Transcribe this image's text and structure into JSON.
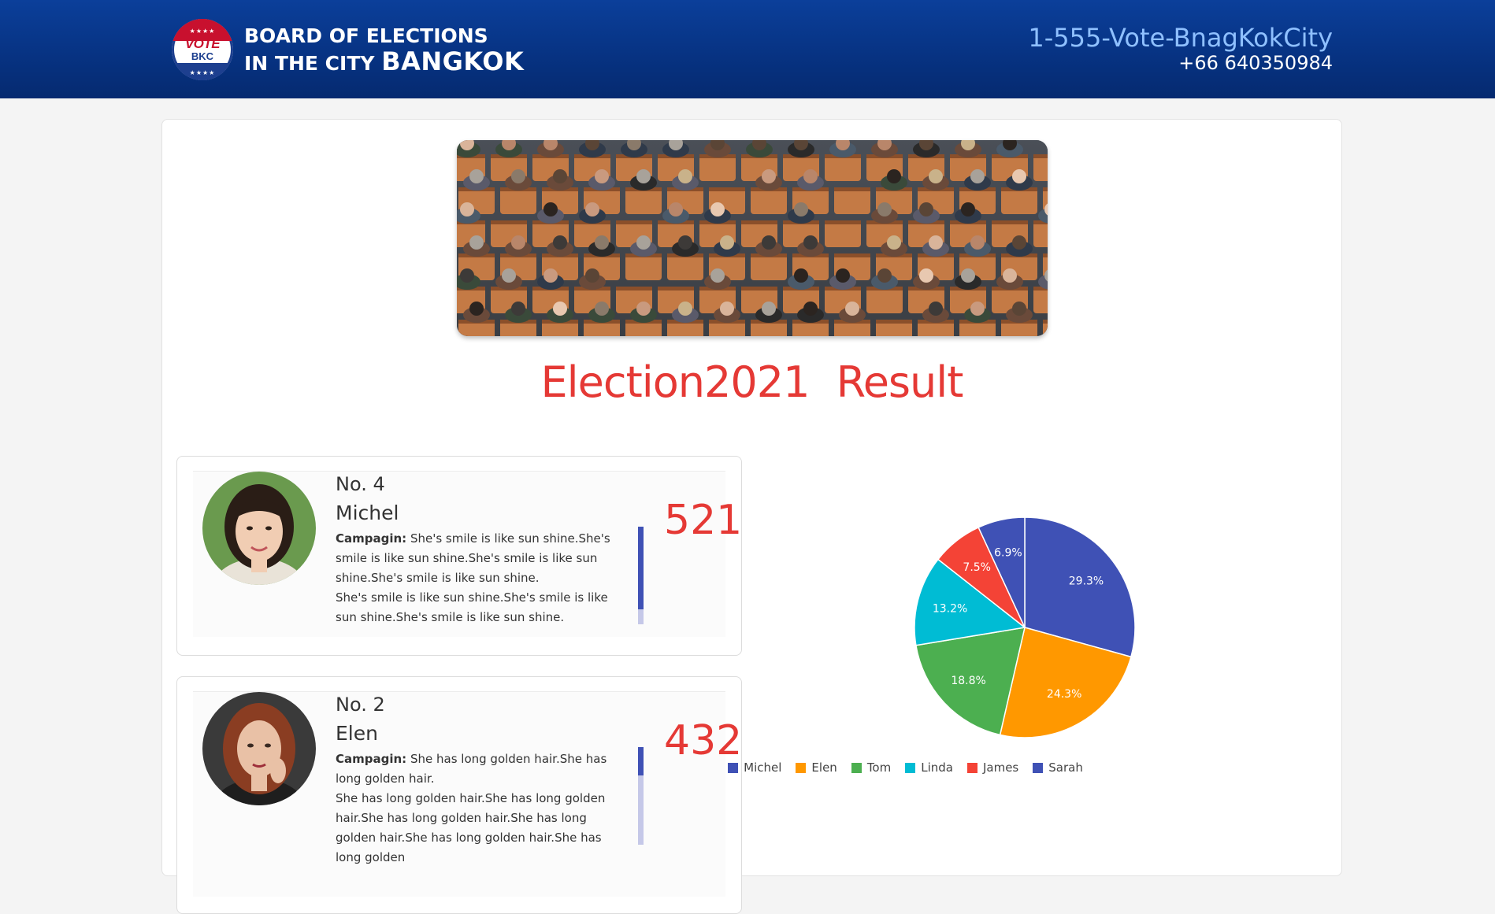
{
  "header": {
    "logo": {
      "vote": "VOTE",
      "bkc": "BKC",
      "stars": "★★★★"
    },
    "org_line1": "BOARD OF ELECTIONS",
    "org_line2_prefix": "IN THE CITY",
    "org_line2_city": "BANGKOK",
    "hotline": "1-555-Vote-BnagKokCity",
    "phone": "+66 640350984"
  },
  "main": {
    "result_title": "Election2021   Result"
  },
  "candidates": [
    {
      "number": "No. 4",
      "name": "Michel",
      "campaign_label": "Campagin:",
      "campaign_text": "She's smile is like sun shine.She's smile is like sun shine.She's smile is like sun shine.She's smile is like sun shine.",
      "campaign_text2": "She's smile is like sun shine.She's smile is like sun shine.She's smile is like sun shine.",
      "votes": "521",
      "bar_fill_fraction": 0.85
    },
    {
      "number": "No. 2",
      "name": "Elen",
      "campaign_label": "Campagin:",
      "campaign_text": "She has long golden hair.She has long golden hair.",
      "campaign_text2": "She has long golden hair.She has long golden hair.She has long golden hair.She has long golden hair.She has long golden hair.She has long golden",
      "votes": "432",
      "bar_fill_fraction": 0.29
    }
  ],
  "chart_data": {
    "type": "pie",
    "categories": [
      "Michel",
      "Elen",
      "Tom",
      "Linda",
      "James",
      "Sarah"
    ],
    "values": [
      29.3,
      24.3,
      18.8,
      13.2,
      7.5,
      6.9
    ],
    "labels": [
      "29.3%",
      "24.3%",
      "18.8%",
      "13.2%",
      "7.5%",
      "6.9%"
    ],
    "colors": [
      "#3f51b5",
      "#ff9800",
      "#4caf50",
      "#00bcd4",
      "#f44336",
      "#3f51b5"
    ],
    "legend_placement": "bottom"
  }
}
